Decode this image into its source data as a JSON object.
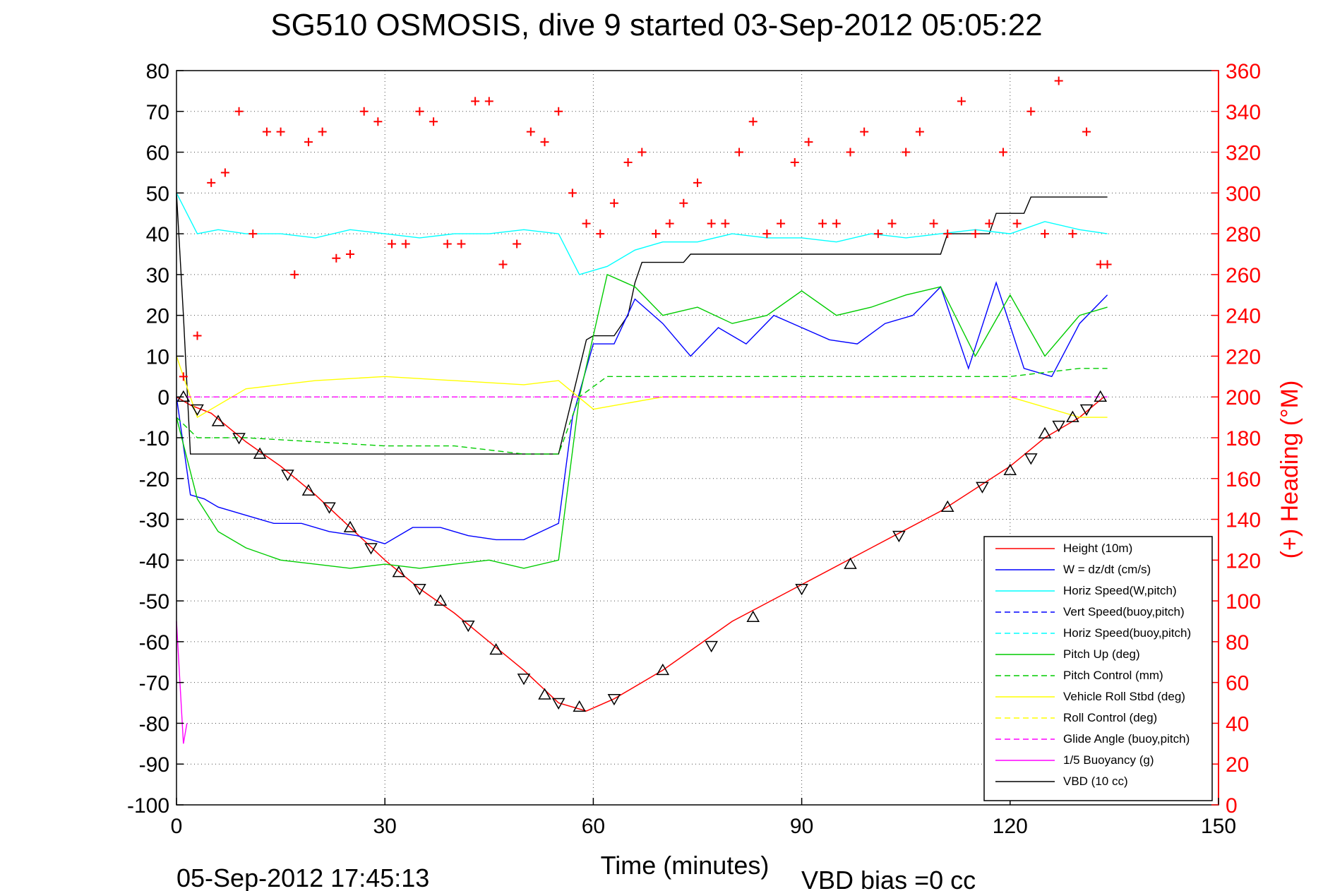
{
  "chart_data": {
    "type": "line",
    "title": "SG510 OSMOSIS, dive 9 started 03-Sep-2012 05:05:22",
    "xlabel": "Time (minutes)",
    "ylabel": "",
    "y2label": "(+) Heading (°M)",
    "xlim": [
      0,
      150
    ],
    "ylim": [
      -100,
      80
    ],
    "y2lim": [
      0,
      360
    ],
    "x_ticks": [
      "0",
      "30",
      "60",
      "90",
      "120",
      "150"
    ],
    "y_ticks": [
      "80",
      "70",
      "60",
      "50",
      "40",
      "30",
      "20",
      "10",
      "0",
      "-10",
      "-20",
      "-30",
      "-40",
      "-50",
      "-60",
      "-70",
      "-80",
      "-90",
      "-100"
    ],
    "y2_ticks": [
      "360",
      "340",
      "320",
      "300",
      "280",
      "260",
      "240",
      "220",
      "200",
      "180",
      "160",
      "140",
      "120",
      "100",
      "80",
      "60",
      "40",
      "20",
      "0"
    ],
    "grid": true,
    "legend_position": "bottom-right",
    "footer_left": "05-Sep-2012 17:45:13",
    "footer_right": "VBD bias =0 cc",
    "colors": {
      "height": "#ff0000",
      "w": "#0000ff",
      "horiz": "#00ffff",
      "pitch": "#00cc00",
      "roll": "#ffff00",
      "glide": "#ff00ff",
      "vbd": "#000000",
      "heading": "#ff0000"
    },
    "legend": [
      {
        "label": "Height (10m)",
        "color": "#ff0000",
        "dash": false
      },
      {
        "label": "W = dz/dt (cm/s)",
        "color": "#0000ff",
        "dash": false
      },
      {
        "label": "Horiz Speed(W,pitch)",
        "color": "#00ffff",
        "dash": false
      },
      {
        "label": "Vert Speed(buoy,pitch)",
        "color": "#0000ff",
        "dash": true
      },
      {
        "label": "Horiz Speed(buoy,pitch)",
        "color": "#00ffff",
        "dash": true
      },
      {
        "label": "Pitch Up (deg)",
        "color": "#00cc00",
        "dash": false
      },
      {
        "label": "Pitch Control (mm)",
        "color": "#00cc00",
        "dash": true
      },
      {
        "label": "Vehicle Roll Stbd (deg)",
        "color": "#ffff00",
        "dash": false
      },
      {
        "label": "Roll Control (deg)",
        "color": "#ffff00",
        "dash": true
      },
      {
        "label": "Glide Angle (buoy,pitch)",
        "color": "#ff00ff",
        "dash": true
      },
      {
        "label": "1/5 Buoyancy (g)",
        "color": "#ff00ff",
        "dash": false
      },
      {
        "label": "VBD (10 cc)",
        "color": "#000000",
        "dash": false
      }
    ],
    "series": [
      {
        "name": "Height (10m)",
        "x": [
          0,
          2,
          5,
          10,
          15,
          20,
          25,
          30,
          35,
          40,
          45,
          50,
          55,
          59,
          63,
          70,
          80,
          90,
          100,
          110,
          120,
          125,
          130,
          133.5
        ],
        "values": [
          0,
          -2,
          -4,
          -11,
          -17,
          -24,
          -32,
          -40,
          -47,
          -53,
          -60,
          -67,
          -75,
          -77,
          -74,
          -67,
          -55,
          -46,
          -37,
          -28,
          -17,
          -10,
          -5,
          0
        ]
      },
      {
        "name": "VBD (10 cc)",
        "x": [
          0,
          1,
          2,
          55,
          57,
          59,
          60,
          63,
          65,
          66,
          67,
          73,
          74,
          110,
          111,
          117,
          118,
          122,
          123,
          134
        ],
        "values": [
          50,
          20,
          -14,
          -14,
          0,
          14,
          15,
          15,
          20,
          28,
          33,
          33,
          35,
          35,
          40,
          40,
          45,
          45,
          49,
          49
        ]
      },
      {
        "name": "W = dz/dt (cm/s)",
        "x": [
          0,
          2,
          4,
          6,
          10,
          14,
          18,
          22,
          26,
          30,
          34,
          38,
          42,
          46,
          50,
          55,
          57,
          60,
          63,
          66,
          70,
          74,
          78,
          82,
          86,
          90,
          94,
          98,
          102,
          106,
          110,
          114,
          118,
          122,
          126,
          130,
          134
        ],
        "values": [
          0,
          -24,
          -25,
          -27,
          -29,
          -31,
          -31,
          -33,
          -34,
          -36,
          -32,
          -32,
          -34,
          -35,
          -35,
          -31,
          -5,
          13,
          13,
          24,
          18,
          10,
          17,
          13,
          20,
          17,
          14,
          13,
          18,
          20,
          27,
          7,
          28,
          7,
          5,
          18,
          25
        ]
      },
      {
        "name": "Horiz Speed(W,pitch)",
        "x": [
          0,
          3,
          6,
          10,
          15,
          20,
          25,
          30,
          35,
          40,
          45,
          50,
          55,
          58,
          62,
          66,
          70,
          75,
          80,
          85,
          90,
          95,
          100,
          105,
          110,
          115,
          120,
          125,
          130,
          134
        ],
        "values": [
          50,
          40,
          41,
          40,
          40,
          39,
          41,
          40,
          39,
          40,
          40,
          41,
          40,
          30,
          32,
          36,
          38,
          38,
          40,
          39,
          39,
          38,
          40,
          39,
          40,
          41,
          40,
          43,
          41,
          40
        ]
      },
      {
        "name": "Pitch Up (deg)",
        "x": [
          0,
          3,
          6,
          10,
          15,
          20,
          25,
          30,
          35,
          40,
          45,
          50,
          55,
          58,
          62,
          66,
          70,
          75,
          80,
          85,
          90,
          95,
          100,
          105,
          110,
          115,
          120,
          125,
          130,
          134
        ],
        "values": [
          -5,
          -25,
          -33,
          -37,
          -40,
          -41,
          -42,
          -41,
          -42,
          -41,
          -40,
          -42,
          -40,
          0,
          30,
          27,
          20,
          22,
          18,
          20,
          26,
          20,
          22,
          25,
          27,
          10,
          25,
          10,
          20,
          22
        ]
      },
      {
        "name": "Pitch Control (mm)",
        "x": [
          0,
          3,
          10,
          20,
          30,
          40,
          50,
          55,
          58,
          62,
          70,
          80,
          90,
          100,
          110,
          120,
          130,
          134
        ],
        "values": [
          -5,
          -10,
          -10,
          -11,
          -12,
          -12,
          -14,
          -14,
          0,
          5,
          5,
          5,
          5,
          5,
          5,
          5,
          7,
          7
        ]
      },
      {
        "name": "Vehicle Roll Stbd (deg)",
        "x": [
          0,
          3,
          10,
          20,
          30,
          40,
          50,
          55,
          60,
          70,
          80,
          90,
          100,
          110,
          120,
          130,
          134
        ],
        "values": [
          10,
          -5,
          2,
          4,
          5,
          4,
          3,
          4,
          -3,
          0,
          0,
          0,
          0,
          0,
          0,
          -5,
          -5
        ]
      },
      {
        "name": "Glide Angle (buoy,pitch)",
        "x": [
          0,
          60,
          63,
          134
        ],
        "values": [
          0,
          0,
          0,
          0
        ]
      },
      {
        "name": "1/5 Buoyancy (g)",
        "x": [
          0,
          0.5,
          1,
          1.5
        ],
        "values": [
          -55,
          -70,
          -85,
          -80
        ]
      },
      {
        "name": "(+) Heading (°M)",
        "x": [
          1,
          3,
          5,
          7,
          9,
          11,
          13,
          15,
          17,
          19,
          21,
          23,
          25,
          27,
          29,
          31,
          33,
          35,
          37,
          39,
          41,
          43,
          45,
          47,
          49,
          51,
          53,
          55,
          57,
          59,
          61,
          63,
          65,
          67,
          69,
          71,
          73,
          75,
          77,
          79,
          81,
          83,
          85,
          87,
          89,
          91,
          93,
          95,
          97,
          99,
          101,
          103,
          105,
          107,
          109,
          111,
          113,
          115,
          117,
          119,
          121,
          123,
          125,
          127,
          129,
          131,
          133,
          134
        ],
        "values": [
          210,
          230,
          305,
          310,
          340,
          280,
          330,
          330,
          260,
          325,
          330,
          268,
          270,
          340,
          335,
          275,
          275,
          340,
          335,
          275,
          275,
          345,
          345,
          265,
          275,
          330,
          325,
          340,
          300,
          285,
          280,
          295,
          315,
          320,
          280,
          285,
          295,
          305,
          285,
          285,
          320,
          335,
          280,
          285,
          315,
          325,
          285,
          285,
          320,
          330,
          280,
          285,
          320,
          330,
          285,
          280,
          345,
          280,
          285,
          320,
          285,
          340,
          280,
          355,
          280,
          330,
          265,
          265
        ]
      }
    ],
    "markers": {
      "x": [
        1,
        3,
        6,
        9,
        12,
        16,
        19,
        22,
        25,
        28,
        32,
        35,
        38,
        42,
        46,
        50,
        53,
        55,
        58,
        63,
        70,
        77,
        83,
        90,
        97,
        104,
        111,
        116,
        120,
        123,
        125,
        127,
        129,
        131,
        133
      ],
      "values": [
        0,
        -3,
        -6,
        -10,
        -14,
        -19,
        -23,
        -27,
        -32,
        -37,
        -43,
        -47,
        -50,
        -56,
        -62,
        -69,
        -73,
        -75,
        -76,
        -74,
        -67,
        -61,
        -54,
        -47,
        -41,
        -34,
        -27,
        -22,
        -18,
        -15,
        -9,
        -7,
        -5,
        -3,
        0
      ]
    }
  }
}
